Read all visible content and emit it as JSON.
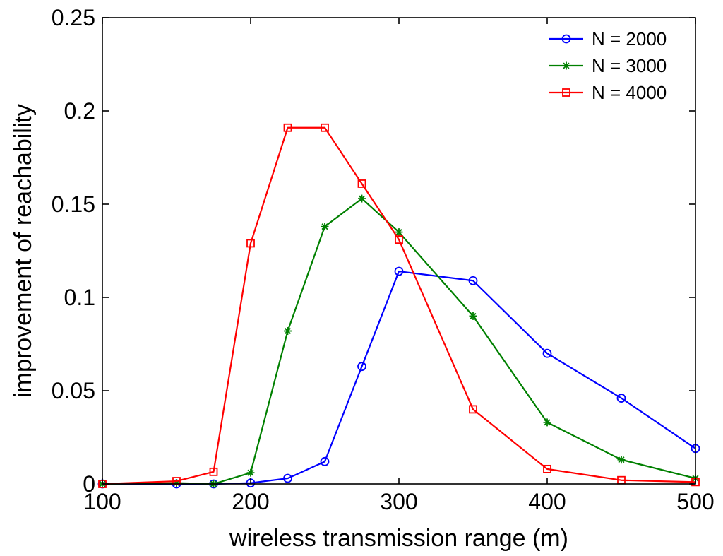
{
  "chart_data": {
    "type": "line",
    "title": "",
    "xlabel": "wireless transmission range (m)",
    "ylabel": "improvement of reachability",
    "xlim": [
      100,
      500
    ],
    "ylim": [
      0,
      0.25
    ],
    "xticks": [
      100,
      200,
      300,
      400,
      500
    ],
    "xtick_labels": [
      "100",
      "200",
      "300",
      "400",
      "500"
    ],
    "yticks": [
      0,
      0.05,
      0.1,
      0.15,
      0.2,
      0.25
    ],
    "ytick_labels": [
      "0",
      "0.05",
      "0.1",
      "0.15",
      "0.2",
      "0.25"
    ],
    "grid": false,
    "legend_position": "top-right",
    "series": [
      {
        "name": "N = 2000",
        "color": "#0000ff",
        "marker": "circle",
        "x": [
          100,
          150,
          175,
          200,
          225,
          250,
          275,
          300,
          350,
          400,
          450,
          500
        ],
        "y": [
          0,
          0,
          0,
          0.0005,
          0.003,
          0.012,
          0.063,
          0.114,
          0.109,
          0.07,
          0.046,
          0.019
        ]
      },
      {
        "name": "N = 3000",
        "color": "#008000",
        "marker": "asterisk",
        "x": [
          100,
          150,
          175,
          200,
          225,
          250,
          275,
          300,
          350,
          400,
          450,
          500
        ],
        "y": [
          0,
          0.0005,
          0,
          0.006,
          0.082,
          0.138,
          0.153,
          0.135,
          0.09,
          0.033,
          0.013,
          0.003
        ]
      },
      {
        "name": "N = 4000",
        "color": "#ff0000",
        "marker": "square",
        "x": [
          100,
          150,
          175,
          200,
          225,
          250,
          275,
          300,
          350,
          400,
          450,
          500
        ],
        "y": [
          0,
          0.0015,
          0.0065,
          0.129,
          0.191,
          0.191,
          0.161,
          0.131,
          0.04,
          0.008,
          0.002,
          0.001
        ]
      }
    ]
  }
}
